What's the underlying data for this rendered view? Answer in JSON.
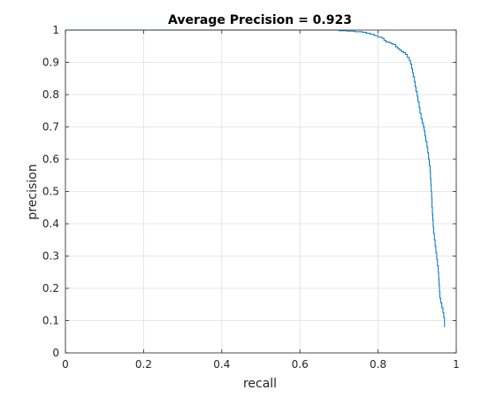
{
  "chart_data": {
    "type": "line",
    "title": "Average Precision = 0.923",
    "xlabel": "recall",
    "ylabel": "precision",
    "xlim": [
      0,
      1
    ],
    "ylim": [
      0,
      1
    ],
    "xticks": [
      "0",
      "0.2",
      "0.4",
      "0.6",
      "0.8",
      "1"
    ],
    "yticks": [
      "0",
      "0.1",
      "0.2",
      "0.3",
      "0.4",
      "0.5",
      "0.6",
      "0.7",
      "0.8",
      "0.9",
      "1"
    ],
    "grid": true,
    "line_color": "#0072bd",
    "series": [
      {
        "points": [
          [
            0.0,
            1.0
          ],
          [
            0.69,
            1.0
          ],
          [
            0.7,
            0.998
          ],
          [
            0.72,
            0.997
          ],
          [
            0.74,
            0.995
          ],
          [
            0.76,
            0.993
          ],
          [
            0.77,
            0.99
          ],
          [
            0.78,
            0.987
          ],
          [
            0.79,
            0.983
          ],
          [
            0.8,
            0.978
          ],
          [
            0.81,
            0.975
          ],
          [
            0.815,
            0.968
          ],
          [
            0.82,
            0.963
          ],
          [
            0.83,
            0.96
          ],
          [
            0.835,
            0.957
          ],
          [
            0.84,
            0.955
          ],
          [
            0.845,
            0.948
          ],
          [
            0.85,
            0.943
          ],
          [
            0.855,
            0.938
          ],
          [
            0.86,
            0.933
          ],
          [
            0.865,
            0.93
          ],
          [
            0.87,
            0.925
          ],
          [
            0.875,
            0.915
          ],
          [
            0.88,
            0.905
          ],
          [
            0.883,
            0.895
          ],
          [
            0.886,
            0.88
          ],
          [
            0.888,
            0.868
          ],
          [
            0.89,
            0.855
          ],
          [
            0.893,
            0.84
          ],
          [
            0.895,
            0.825
          ],
          [
            0.897,
            0.81
          ],
          [
            0.9,
            0.795
          ],
          [
            0.902,
            0.778
          ],
          [
            0.905,
            0.76
          ],
          [
            0.907,
            0.742
          ],
          [
            0.91,
            0.725
          ],
          [
            0.913,
            0.712
          ],
          [
            0.916,
            0.7
          ],
          [
            0.918,
            0.688
          ],
          [
            0.92,
            0.672
          ],
          [
            0.922,
            0.655
          ],
          [
            0.925,
            0.638
          ],
          [
            0.927,
            0.62
          ],
          [
            0.929,
            0.6
          ],
          [
            0.931,
            0.58
          ],
          [
            0.933,
            0.56
          ],
          [
            0.934,
            0.54
          ],
          [
            0.935,
            0.52
          ],
          [
            0.936,
            0.5
          ],
          [
            0.937,
            0.48
          ],
          [
            0.938,
            0.45
          ],
          [
            0.939,
            0.43
          ],
          [
            0.94,
            0.41
          ],
          [
            0.941,
            0.39
          ],
          [
            0.942,
            0.37
          ],
          [
            0.944,
            0.35
          ],
          [
            0.946,
            0.33
          ],
          [
            0.948,
            0.31
          ],
          [
            0.95,
            0.29
          ],
          [
            0.952,
            0.27
          ],
          [
            0.954,
            0.25
          ],
          [
            0.955,
            0.23
          ],
          [
            0.956,
            0.21
          ],
          [
            0.957,
            0.19
          ],
          [
            0.958,
            0.17
          ],
          [
            0.96,
            0.155
          ],
          [
            0.963,
            0.14
          ],
          [
            0.966,
            0.125
          ],
          [
            0.968,
            0.11
          ],
          [
            0.97,
            0.095
          ],
          [
            0.97,
            0.08
          ]
        ]
      }
    ]
  }
}
